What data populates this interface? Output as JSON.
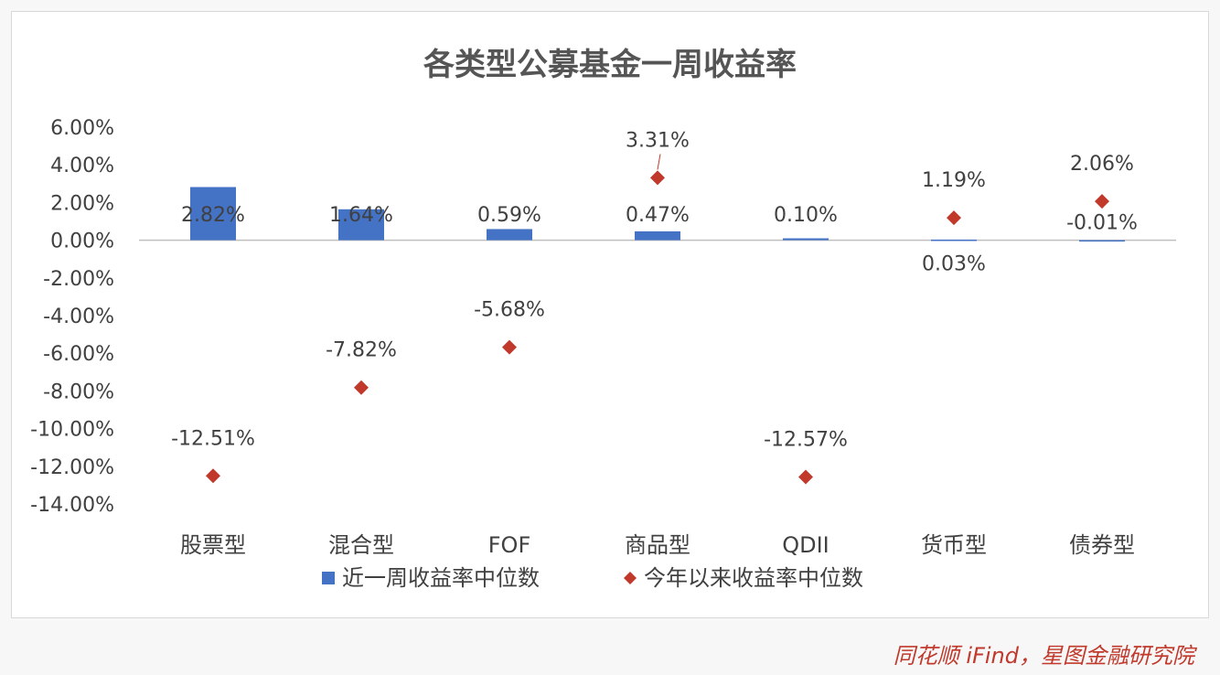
{
  "chart_data": {
    "type": "bar",
    "title": "各类型公募基金一周收益率",
    "categories": [
      "股票型",
      "混合型",
      "FOF",
      "商品型",
      "QDII",
      "货币型",
      "债券型"
    ],
    "yticks": [
      "6.00%",
      "4.00%",
      "2.00%",
      "0.00%",
      "-2.00%",
      "-4.00%",
      "-6.00%",
      "-8.00%",
      "-10.00%",
      "-12.00%",
      "-14.00%"
    ],
    "ylim": [
      -14,
      6
    ],
    "legend_position": "bottom",
    "grid": false,
    "series": [
      {
        "name": "近一周收益率中位数",
        "kind": "bar",
        "color": "#4472c4",
        "values": [
          2.82,
          1.64,
          0.59,
          0.47,
          0.1,
          0.03,
          -0.01
        ],
        "labels": [
          "2.82%",
          "1.64%",
          "0.59%",
          "0.47%",
          "0.10%",
          "0.03%",
          "-0.01%"
        ]
      },
      {
        "name": "今年以来收益率中位数",
        "kind": "marker",
        "color": "#c0392b",
        "values": [
          -12.51,
          -7.82,
          -5.68,
          3.31,
          -12.57,
          1.19,
          2.06
        ],
        "labels": [
          "-12.51%",
          "-7.82%",
          "-5.68%",
          "3.31%",
          "-12.57%",
          "1.19%",
          "2.06%"
        ]
      }
    ]
  },
  "watermark": "同花顺 iFind，星图金融研究院"
}
